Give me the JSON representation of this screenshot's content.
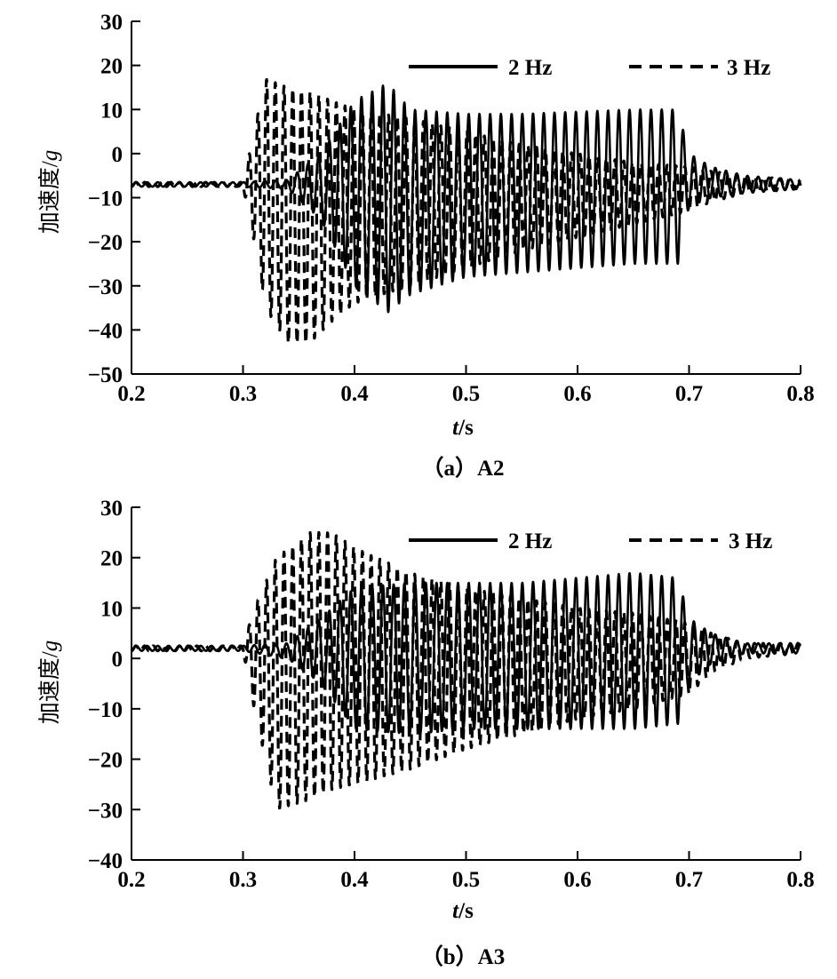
{
  "chart_data": [
    {
      "type": "line",
      "caption": "（a）A2",
      "ylabel_main": "加速度/",
      "ylabel_unit": "g",
      "xlabel_main": "t",
      "xlabel_unit": "/s",
      "xlim": [
        0.2,
        0.8
      ],
      "ylim": [
        -50,
        30
      ],
      "xticks": [
        0.2,
        0.3,
        0.4,
        0.5,
        0.6,
        0.7,
        0.8
      ],
      "xtick_labels": [
        "0.2",
        "0.3",
        "0.4",
        "0.5",
        "0.6",
        "0.7",
        "0.8"
      ],
      "yticks": [
        -50,
        -40,
        -30,
        -20,
        -10,
        0,
        10,
        20,
        30
      ],
      "ytick_labels": [
        "−50",
        "−40",
        "−30",
        "−20",
        "−10",
        "0",
        "10",
        "20",
        "30"
      ],
      "grid": false,
      "legend_position": "top-right",
      "series": [
        {
          "name": "2 Hz",
          "style": "solid",
          "baseline": -7,
          "envelope": [
            {
              "x": 0.2,
              "upper": -6.5,
              "lower": -7.5
            },
            {
              "x": 0.3,
              "upper": -6.5,
              "lower": -7.5
            },
            {
              "x": 0.34,
              "upper": -6,
              "lower": -8
            },
            {
              "x": 0.37,
              "upper": 0,
              "lower": -15
            },
            {
              "x": 0.4,
              "upper": 12,
              "lower": -30
            },
            {
              "x": 0.43,
              "upper": 16,
              "lower": -36
            },
            {
              "x": 0.45,
              "upper": 10,
              "lower": -32
            },
            {
              "x": 0.5,
              "upper": 9,
              "lower": -28
            },
            {
              "x": 0.55,
              "upper": 9,
              "lower": -27
            },
            {
              "x": 0.6,
              "upper": 9.5,
              "lower": -26
            },
            {
              "x": 0.65,
              "upper": 10,
              "lower": -25
            },
            {
              "x": 0.69,
              "upper": 10,
              "lower": -25
            },
            {
              "x": 0.7,
              "upper": 0,
              "lower": -12
            },
            {
              "x": 0.72,
              "upper": -3,
              "lower": -10
            },
            {
              "x": 0.75,
              "upper": -5,
              "lower": -9
            },
            {
              "x": 0.8,
              "upper": -6,
              "lower": -8
            }
          ]
        },
        {
          "name": "3 Hz",
          "style": "dashed",
          "baseline": -7,
          "envelope": [
            {
              "x": 0.2,
              "upper": -6.5,
              "lower": -7.5
            },
            {
              "x": 0.3,
              "upper": -6.5,
              "lower": -7.5
            },
            {
              "x": 0.31,
              "upper": 5,
              "lower": -20
            },
            {
              "x": 0.32,
              "upper": 17,
              "lower": -35
            },
            {
              "x": 0.34,
              "upper": 15,
              "lower": -43
            },
            {
              "x": 0.36,
              "upper": 14,
              "lower": -43
            },
            {
              "x": 0.38,
              "upper": 12,
              "lower": -38
            },
            {
              "x": 0.4,
              "upper": 10,
              "lower": -34
            },
            {
              "x": 0.45,
              "upper": 8,
              "lower": -30
            },
            {
              "x": 0.5,
              "upper": 5,
              "lower": -26
            },
            {
              "x": 0.55,
              "upper": 2,
              "lower": -22
            },
            {
              "x": 0.6,
              "upper": 0,
              "lower": -19
            },
            {
              "x": 0.65,
              "upper": -2,
              "lower": -16
            },
            {
              "x": 0.7,
              "upper": -3,
              "lower": -13
            },
            {
              "x": 0.72,
              "upper": -4,
              "lower": -11
            },
            {
              "x": 0.75,
              "upper": -5,
              "lower": -9
            },
            {
              "x": 0.8,
              "upper": -6,
              "lower": -8
            }
          ]
        }
      ]
    },
    {
      "type": "line",
      "caption": "（b）A3",
      "ylabel_main": "加速度/",
      "ylabel_unit": "g",
      "xlabel_main": "t",
      "xlabel_unit": "/s",
      "xlim": [
        0.2,
        0.8
      ],
      "ylim": [
        -40,
        30
      ],
      "xticks": [
        0.2,
        0.3,
        0.4,
        0.5,
        0.6,
        0.7,
        0.8
      ],
      "xtick_labels": [
        "0.2",
        "0.3",
        "0.4",
        "0.5",
        "0.6",
        "0.7",
        "0.8"
      ],
      "yticks": [
        -40,
        -30,
        -20,
        -10,
        0,
        10,
        20,
        30
      ],
      "ytick_labels": [
        "−40",
        "−30",
        "−20",
        "−10",
        "0",
        "10",
        "20",
        "30"
      ],
      "grid": false,
      "legend_position": "top-right",
      "series": [
        {
          "name": "2 Hz",
          "style": "solid",
          "baseline": 2,
          "envelope": [
            {
              "x": 0.2,
              "upper": 2.5,
              "lower": 1.5
            },
            {
              "x": 0.3,
              "upper": 2.5,
              "lower": 1.5
            },
            {
              "x": 0.34,
              "upper": 3,
              "lower": 0
            },
            {
              "x": 0.37,
              "upper": 8,
              "lower": -5
            },
            {
              "x": 0.4,
              "upper": 14,
              "lower": -14
            },
            {
              "x": 0.45,
              "upper": 15,
              "lower": -15
            },
            {
              "x": 0.5,
              "upper": 15,
              "lower": -14
            },
            {
              "x": 0.55,
              "upper": 15,
              "lower": -14
            },
            {
              "x": 0.6,
              "upper": 16,
              "lower": -14
            },
            {
              "x": 0.65,
              "upper": 17,
              "lower": -14
            },
            {
              "x": 0.69,
              "upper": 16,
              "lower": -13
            },
            {
              "x": 0.7,
              "upper": 8,
              "lower": -5
            },
            {
              "x": 0.72,
              "upper": 5,
              "lower": -1
            },
            {
              "x": 0.75,
              "upper": 3,
              "lower": 1
            },
            {
              "x": 0.8,
              "upper": 3,
              "lower": 1
            }
          ]
        },
        {
          "name": "3 Hz",
          "style": "dashed",
          "baseline": 2,
          "envelope": [
            {
              "x": 0.2,
              "upper": 2.5,
              "lower": 1.5
            },
            {
              "x": 0.3,
              "upper": 2.5,
              "lower": 1.5
            },
            {
              "x": 0.31,
              "upper": 10,
              "lower": -10
            },
            {
              "x": 0.33,
              "upper": 20,
              "lower": -30
            },
            {
              "x": 0.36,
              "upper": 25,
              "lower": -28
            },
            {
              "x": 0.38,
              "upper": 25,
              "lower": -26
            },
            {
              "x": 0.4,
              "upper": 22,
              "lower": -25
            },
            {
              "x": 0.45,
              "upper": 17,
              "lower": -22
            },
            {
              "x": 0.5,
              "upper": 14,
              "lower": -18
            },
            {
              "x": 0.55,
              "upper": 12,
              "lower": -15
            },
            {
              "x": 0.6,
              "upper": 10,
              "lower": -12
            },
            {
              "x": 0.65,
              "upper": 9,
              "lower": -10
            },
            {
              "x": 0.7,
              "upper": 7,
              "lower": -7
            },
            {
              "x": 0.72,
              "upper": 5,
              "lower": -3
            },
            {
              "x": 0.75,
              "upper": 3,
              "lower": 0
            },
            {
              "x": 0.8,
              "upper": 3,
              "lower": 1
            }
          ]
        }
      ]
    }
  ]
}
